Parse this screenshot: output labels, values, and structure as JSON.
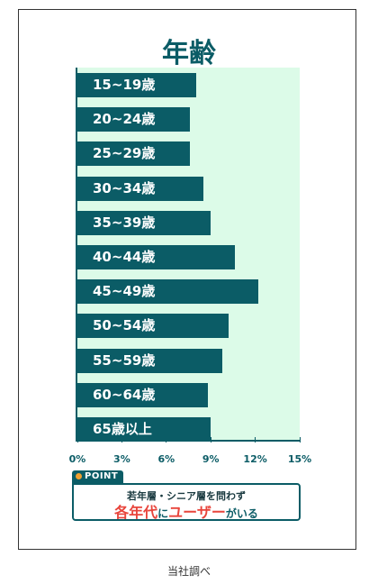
{
  "chart_data": {
    "type": "bar",
    "orientation": "horizontal",
    "title": "年齢",
    "categories": [
      "15~19歳",
      "20~24歳",
      "25~29歳",
      "30~34歳",
      "35~39歳",
      "40~44歳",
      "45~49歳",
      "50~54歳",
      "55~59歳",
      "60~64歳",
      "65歳以上"
    ],
    "values": [
      8.0,
      7.6,
      7.6,
      8.5,
      9.0,
      10.6,
      12.2,
      10.2,
      9.8,
      8.8,
      9.0
    ],
    "xlim": [
      0,
      15
    ],
    "xticks": [
      "0%",
      "3%",
      "6%",
      "9%",
      "12%",
      "15%"
    ],
    "xtick_values": [
      0,
      3,
      6,
      9,
      12,
      15
    ],
    "grid": false,
    "colors": {
      "bar": "#0b5c66",
      "background": "#dcfbe8",
      "accent": "#e8453c"
    }
  },
  "point": {
    "tag": "POINT",
    "line1": "若年層・シニア層を問わず",
    "line2_a": "各年代",
    "line2_b": "に",
    "line2_c": "ユーザー",
    "line2_d": "がいる"
  },
  "caption": "当社調べ"
}
